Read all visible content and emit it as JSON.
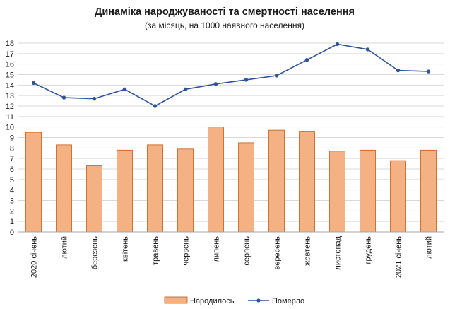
{
  "chart_data": {
    "type": "bar+line",
    "title": "Динаміка народжуваності та смертності населення",
    "subtitle": "(за місяць, на 1000 наявного населення)",
    "categories": [
      "2020 січень",
      "лютий",
      "березень",
      "квітень",
      "травень",
      "червень",
      "липень",
      "серпень",
      "вересень",
      "жовтень",
      "листопад",
      "грудень",
      "2021 січень",
      "лютий"
    ],
    "series": [
      {
        "name": "Народилось",
        "type": "bar",
        "color": "#F4B183",
        "stroke": "#C55A11",
        "values": [
          9.5,
          8.3,
          6.3,
          7.8,
          8.3,
          7.9,
          10.0,
          8.5,
          9.7,
          9.6,
          7.7,
          7.8,
          6.8,
          7.8
        ]
      },
      {
        "name": "Померло",
        "type": "line",
        "color": "#2F5597",
        "values": [
          14.2,
          12.8,
          12.7,
          13.6,
          12.0,
          13.6,
          14.1,
          14.5,
          14.9,
          16.4,
          17.9,
          17.4,
          15.4,
          15.3
        ]
      }
    ],
    "yticks": [
      "0",
      "1",
      "2",
      "3",
      "4",
      "5",
      "6",
      "7",
      "8",
      "9",
      "10",
      "11",
      "12",
      "13",
      "14",
      "15",
      "16",
      "17",
      "18"
    ],
    "ylim": [
      0,
      18
    ],
    "grid": true,
    "legend": "bottom"
  }
}
